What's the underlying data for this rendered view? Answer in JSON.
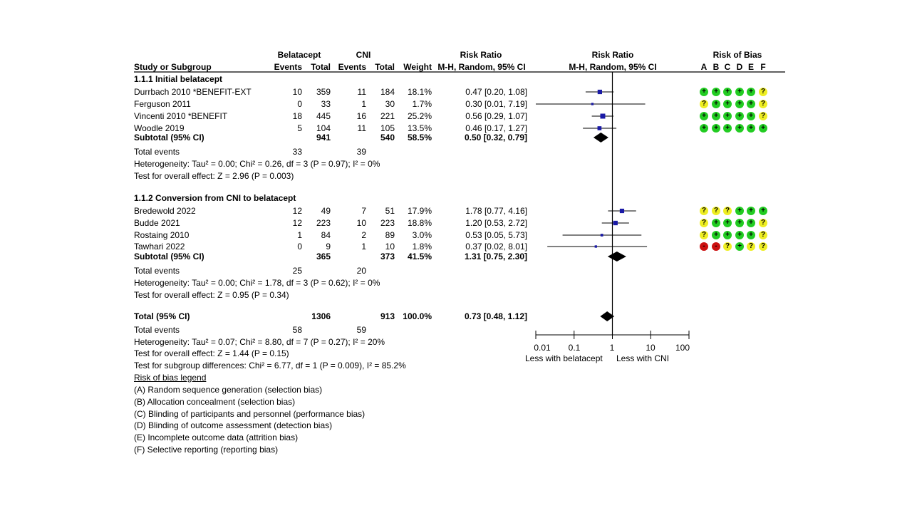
{
  "colors": {
    "low": "#22cc22",
    "unclear": "#eeee22",
    "high": "#cc1111",
    "square": "#1a1aa6",
    "diamond": "#000000"
  },
  "header": {
    "group1": "Belatacept",
    "group2": "CNI",
    "rr_title": "Risk Ratio",
    "study_col": "Study or Subgroup",
    "events": "Events",
    "total": "Total",
    "weight": "Weight",
    "method": "M-H, Random, 95% CI",
    "plot_title": "Risk Ratio",
    "plot_method": "M-H, Random, 95% CI",
    "rob_title": "Risk of Bias",
    "rob_letters": [
      "A",
      "B",
      "C",
      "D",
      "E",
      "F"
    ]
  },
  "subgroups": [
    {
      "title": "1.1.1 Initial belatacept",
      "studies": [
        {
          "name": "Durrbach 2010 *BENEFIT-EXT",
          "e1": "10",
          "n1": "359",
          "e2": "11",
          "n2": "184",
          "weight": "18.1%",
          "ci": "0.47 [0.20, 1.08]",
          "rob": [
            "+",
            "+",
            "+",
            "+",
            "+",
            "?"
          ]
        },
        {
          "name": "Ferguson 2011",
          "e1": "0",
          "n1": "33",
          "e2": "1",
          "n2": "30",
          "weight": "1.7%",
          "ci": "0.30 [0.01, 7.19]",
          "rob": [
            "?",
            "+",
            "+",
            "+",
            "+",
            "?"
          ]
        },
        {
          "name": "Vincenti 2010 *BENEFIT",
          "e1": "18",
          "n1": "445",
          "e2": "16",
          "n2": "221",
          "weight": "25.2%",
          "ci": "0.56 [0.29, 1.07]",
          "rob": [
            "+",
            "+",
            "+",
            "+",
            "+",
            "?"
          ]
        },
        {
          "name": "Woodle 2019",
          "e1": "5",
          "n1": "104",
          "e2": "11",
          "n2": "105",
          "weight": "13.5%",
          "ci": "0.46 [0.17, 1.27]",
          "rob": [
            "+",
            "+",
            "+",
            "+",
            "+",
            "+"
          ]
        }
      ],
      "subtotal": {
        "label": "Subtotal (95% CI)",
        "n1": "941",
        "n2": "540",
        "weight": "58.5%",
        "ci": "0.50 [0.32, 0.79]"
      },
      "total_events": {
        "label": "Total events",
        "e1": "33",
        "e2": "39"
      },
      "heterogeneity": "Heterogeneity: Tau² = 0.00; Chi² = 0.26, df = 3 (P = 0.97); I² = 0%",
      "overall": "Test for overall effect: Z = 2.96 (P = 0.003)"
    },
    {
      "title": "1.1.2 Conversion from CNI to belatacept",
      "studies": [
        {
          "name": "Bredewold 2022",
          "e1": "12",
          "n1": "49",
          "e2": "7",
          "n2": "51",
          "weight": "17.9%",
          "ci": "1.78 [0.77, 4.16]",
          "rob": [
            "?",
            "?",
            "?",
            "+",
            "+",
            "+"
          ]
        },
        {
          "name": "Budde 2021",
          "e1": "12",
          "n1": "223",
          "e2": "10",
          "n2": "223",
          "weight": "18.8%",
          "ci": "1.20 [0.53, 2.72]",
          "rob": [
            "?",
            "+",
            "+",
            "+",
            "+",
            "?"
          ]
        },
        {
          "name": "Rostaing 2010",
          "e1": "1",
          "n1": "84",
          "e2": "2",
          "n2": "89",
          "weight": "3.0%",
          "ci": "0.53 [0.05, 5.73]",
          "rob": [
            "?",
            "+",
            "+",
            "+",
            "+",
            "?"
          ]
        },
        {
          "name": "Tawhari 2022",
          "e1": "0",
          "n1": "9",
          "e2": "1",
          "n2": "10",
          "weight": "1.8%",
          "ci": "0.37 [0.02, 8.01]",
          "rob": [
            "-",
            "-",
            "?",
            "+",
            "?",
            "?"
          ]
        }
      ],
      "subtotal": {
        "label": "Subtotal (95% CI)",
        "n1": "365",
        "n2": "373",
        "weight": "41.5%",
        "ci": "1.31 [0.75, 2.30]"
      },
      "total_events": {
        "label": "Total events",
        "e1": "25",
        "e2": "20"
      },
      "heterogeneity": "Heterogeneity: Tau² = 0.00; Chi² = 1.78, df = 3 (P = 0.62); I² = 0%",
      "overall": "Test for overall effect: Z = 0.95 (P = 0.34)"
    }
  ],
  "total": {
    "label": "Total (95% CI)",
    "n1": "1306",
    "n2": "913",
    "weight": "100.0%",
    "ci": "0.73 [0.48, 1.12]",
    "total_events": {
      "label": "Total events",
      "e1": "58",
      "e2": "59"
    },
    "heterogeneity": "Heterogeneity: Tau² = 0.07; Chi² = 8.80, df = 7 (P = 0.27); I² = 20%",
    "overall": "Test for overall effect: Z = 1.44 (P = 0.15)",
    "subgroup_diff": "Test for subgroup differences: Chi² = 6.77, df = 1 (P = 0.009), I² = 85.2%"
  },
  "axis": {
    "ticks": [
      "0.01",
      "0.1",
      "1",
      "10",
      "100"
    ],
    "left_label": "Less with belatacept",
    "right_label": "Less with CNI"
  },
  "legend": {
    "title": "Risk of bias legend",
    "items": [
      "(A) Random sequence generation (selection bias)",
      "(B) Allocation concealment (selection bias)",
      "(C) Blinding of participants and personnel (performance bias)",
      "(D) Blinding of outcome assessment (detection bias)",
      "(E) Incomplete outcome data (attrition bias)",
      "(F) Selective reporting (reporting bias)"
    ]
  },
  "chart_data": {
    "type": "forest",
    "title": "Risk Ratio (M-H, Random, 95% CI)",
    "xscale": "log",
    "xlim": [
      0.01,
      100
    ],
    "xticks": [
      0.01,
      0.1,
      1,
      10,
      100
    ],
    "xlabel_left": "Less with belatacept",
    "xlabel_right": "Less with CNI",
    "studies": [
      {
        "name": "Durrbach 2010 *BENEFIT-EXT",
        "group": "1.1.1",
        "rr": 0.47,
        "lo": 0.2,
        "hi": 1.08,
        "weight": 18.1
      },
      {
        "name": "Ferguson 2011",
        "group": "1.1.1",
        "rr": 0.3,
        "lo": 0.01,
        "hi": 7.19,
        "weight": 1.7
      },
      {
        "name": "Vincenti 2010 *BENEFIT",
        "group": "1.1.1",
        "rr": 0.56,
        "lo": 0.29,
        "hi": 1.07,
        "weight": 25.2
      },
      {
        "name": "Woodle 2019",
        "group": "1.1.1",
        "rr": 0.46,
        "lo": 0.17,
        "hi": 1.27,
        "weight": 13.5
      },
      {
        "name": "Bredewold 2022",
        "group": "1.1.2",
        "rr": 1.78,
        "lo": 0.77,
        "hi": 4.16,
        "weight": 17.9
      },
      {
        "name": "Budde 2021",
        "group": "1.1.2",
        "rr": 1.2,
        "lo": 0.53,
        "hi": 2.72,
        "weight": 18.8
      },
      {
        "name": "Rostaing 2010",
        "group": "1.1.2",
        "rr": 0.53,
        "lo": 0.05,
        "hi": 5.73,
        "weight": 3.0
      },
      {
        "name": "Tawhari 2022",
        "group": "1.1.2",
        "rr": 0.37,
        "lo": 0.02,
        "hi": 8.01,
        "weight": 1.8
      }
    ],
    "pooled": [
      {
        "name": "Subtotal 1.1.1",
        "rr": 0.5,
        "lo": 0.32,
        "hi": 0.79
      },
      {
        "name": "Subtotal 1.1.2",
        "rr": 1.31,
        "lo": 0.75,
        "hi": 2.3
      },
      {
        "name": "Total",
        "rr": 0.73,
        "lo": 0.48,
        "hi": 1.12
      }
    ]
  }
}
